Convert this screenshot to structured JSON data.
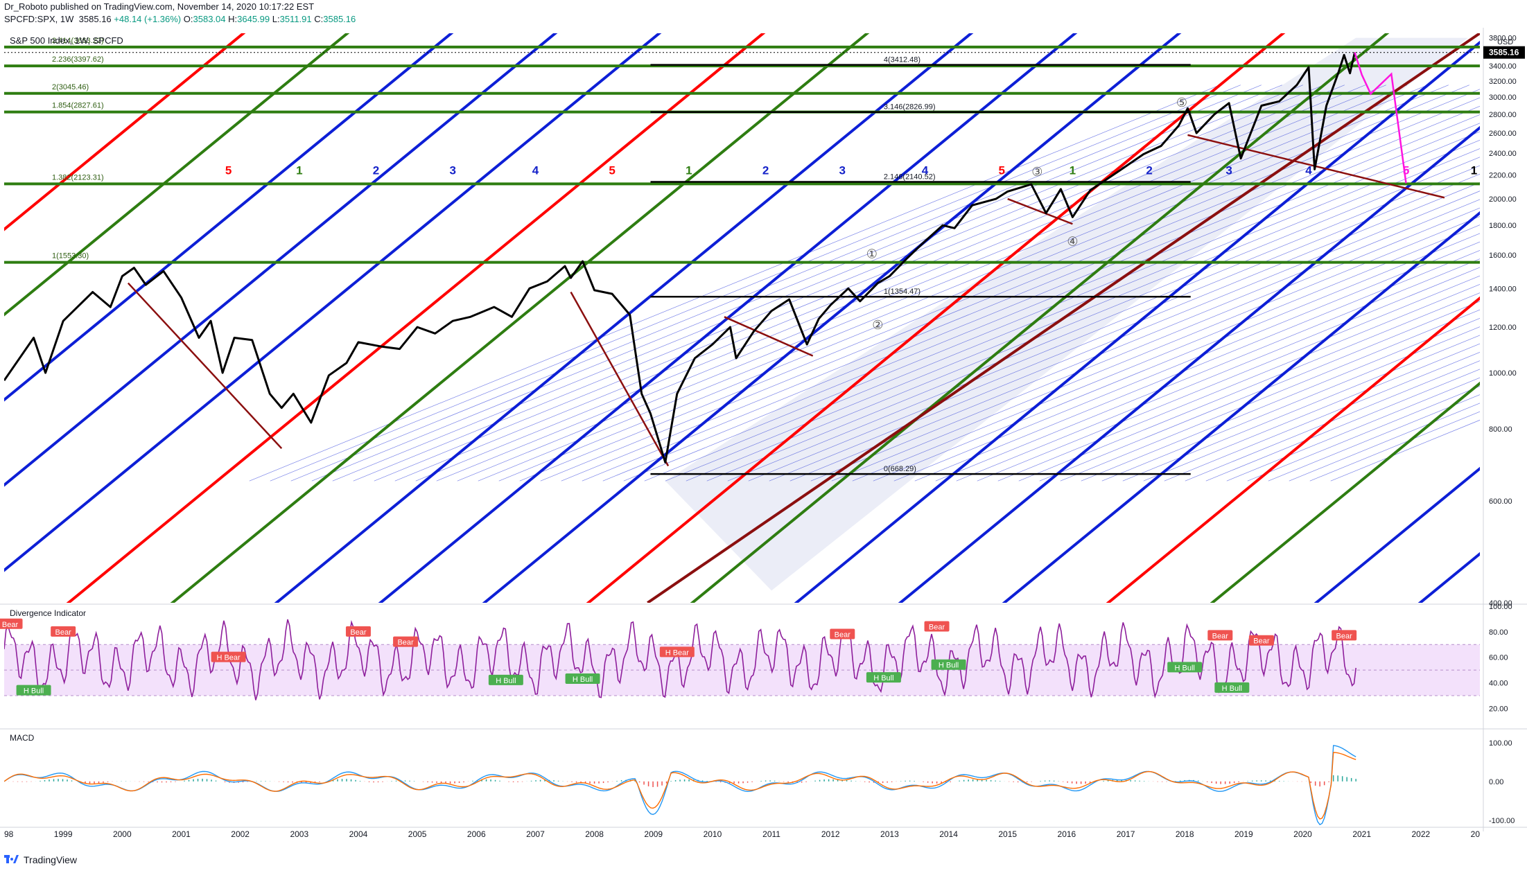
{
  "header": {
    "publisher_line": "Dr_Roboto published on TradingView.com, November 14, 2020 10:17:22 EST",
    "symbol": "SPCFD:SPX, 1W",
    "last": "3585.16",
    "change": "+48.14 (+1.36%)",
    "o_label": "O:",
    "o": "3583.04",
    "h_label": "H:",
    "h": "3645.99",
    "l_label": "L:",
    "l": "3511.91",
    "c_label": "C:",
    "c": "3585.16"
  },
  "footer": {
    "brand": "TradingView"
  },
  "colors": {
    "price": "#000000",
    "red": "#ff0000",
    "green": "#2e7d11",
    "blue": "#0d1fd6",
    "maroon": "#8b0f0f",
    "magenta": "#ff14e0",
    "rsi": "#8e1f9c",
    "rsi_band": "#f3e1fb",
    "macd": "#2196f3",
    "signal": "#ff6d00",
    "hist_pos": "#26a69a",
    "hist_neg": "#ef5350"
  },
  "chart_data": [
    {
      "type": "line",
      "title": "S&P 500 Index, 1W, SPCFD",
      "currency": "USD",
      "last_price_label": "3585.16",
      "x_ticks": [
        "98",
        "1999",
        "2000",
        "2001",
        "2002",
        "2003",
        "2004",
        "2005",
        "2006",
        "2007",
        "2008",
        "2009",
        "2010",
        "2011",
        "2012",
        "2013",
        "2014",
        "2015",
        "2016",
        "2017",
        "2018",
        "2019",
        "2020",
        "2021",
        "2022",
        "20"
      ],
      "y_ticks": [
        "3800.00",
        "3600.00",
        "3400.00",
        "3200.00",
        "3000.00",
        "2800.00",
        "2600.00",
        "2400.00",
        "2200.00",
        "2000.00",
        "1800.00",
        "1600.00",
        "1400.00",
        "1200.00",
        "1000.00",
        "800.00",
        "600.00",
        "400.00"
      ],
      "ylim": [
        400,
        3870
      ],
      "xlim": [
        1998.0,
        2023.0
      ],
      "series": [
        {
          "name": "",
          "points": [
            [
              1998.0,
              970
            ],
            [
              1998.5,
              1150
            ],
            [
              1998.7,
              1000
            ],
            [
              1999.0,
              1230
            ],
            [
              1999.5,
              1380
            ],
            [
              1999.8,
              1300
            ],
            [
              2000.0,
              1470
            ],
            [
              2000.2,
              1520
            ],
            [
              2000.4,
              1420
            ],
            [
              2000.7,
              1500
            ],
            [
              2001.0,
              1350
            ],
            [
              2001.3,
              1150
            ],
            [
              2001.5,
              1230
            ],
            [
              2001.7,
              1000
            ],
            [
              2001.9,
              1150
            ],
            [
              2002.2,
              1140
            ],
            [
              2002.5,
              920
            ],
            [
              2002.7,
              870
            ],
            [
              2002.9,
              920
            ],
            [
              2003.2,
              820
            ],
            [
              2003.5,
              990
            ],
            [
              2003.8,
              1040
            ],
            [
              2004.0,
              1130
            ],
            [
              2004.4,
              1110
            ],
            [
              2004.7,
              1100
            ],
            [
              2005.0,
              1200
            ],
            [
              2005.3,
              1170
            ],
            [
              2005.6,
              1230
            ],
            [
              2005.9,
              1250
            ],
            [
              2006.3,
              1300
            ],
            [
              2006.6,
              1250
            ],
            [
              2006.9,
              1400
            ],
            [
              2007.2,
              1440
            ],
            [
              2007.5,
              1530
            ],
            [
              2007.6,
              1460
            ],
            [
              2007.8,
              1560
            ],
            [
              2008.0,
              1390
            ],
            [
              2008.3,
              1370
            ],
            [
              2008.6,
              1260
            ],
            [
              2008.8,
              920
            ],
            [
              2008.95,
              850
            ],
            [
              2009.2,
              700
            ],
            [
              2009.4,
              920
            ],
            [
              2009.7,
              1060
            ],
            [
              2010.0,
              1120
            ],
            [
              2010.3,
              1200
            ],
            [
              2010.4,
              1060
            ],
            [
              2010.7,
              1180
            ],
            [
              2011.0,
              1280
            ],
            [
              2011.3,
              1340
            ],
            [
              2011.6,
              1120
            ],
            [
              2011.8,
              1240
            ],
            [
              2012.0,
              1310
            ],
            [
              2012.3,
              1400
            ],
            [
              2012.5,
              1330
            ],
            [
              2012.8,
              1430
            ],
            [
              2013.0,
              1470
            ],
            [
              2013.3,
              1580
            ],
            [
              2013.6,
              1690
            ],
            [
              2013.9,
              1800
            ],
            [
              2014.1,
              1780
            ],
            [
              2014.4,
              1950
            ],
            [
              2014.8,
              2000
            ],
            [
              2015.0,
              2060
            ],
            [
              2015.4,
              2120
            ],
            [
              2015.65,
              1890
            ],
            [
              2015.9,
              2080
            ],
            [
              2016.1,
              1860
            ],
            [
              2016.4,
              2070
            ],
            [
              2016.7,
              2170
            ],
            [
              2016.9,
              2240
            ],
            [
              2017.3,
              2390
            ],
            [
              2017.6,
              2470
            ],
            [
              2017.9,
              2680
            ],
            [
              2018.05,
              2870
            ],
            [
              2018.2,
              2600
            ],
            [
              2018.5,
              2800
            ],
            [
              2018.75,
              2930
            ],
            [
              2018.95,
              2350
            ],
            [
              2019.3,
              2900
            ],
            [
              2019.6,
              2950
            ],
            [
              2019.9,
              3150
            ],
            [
              2020.1,
              3380
            ],
            [
              2020.2,
              2250
            ],
            [
              2020.4,
              2900
            ],
            [
              2020.6,
              3300
            ],
            [
              2020.7,
              3550
            ],
            [
              2020.8,
              3300
            ],
            [
              2020.88,
              3585.16
            ]
          ]
        },
        {
          "name": "",
          "points": [
            [
              2020.88,
              3585.16
            ],
            [
              2021.0,
              3280
            ],
            [
              2021.15,
              3040
            ],
            [
              2021.5,
              3290
            ],
            [
              2021.75,
              2130
            ]
          ]
        }
      ],
      "fib_levels": [
        {
          "label": "2.414(3663.22)",
          "value": 3663.22
        },
        {
          "label": "2.236(3397.62)",
          "value": 3397.62
        },
        {
          "label": "2(3045.46)",
          "value": 3045.46
        },
        {
          "label": "1.854(2827.61)",
          "value": 2827.61
        },
        {
          "label": "1.382(2123.31)",
          "value": 2123.31
        },
        {
          "label": "1(1553.30)",
          "value": 1553.3
        }
      ],
      "fib_levels_2": [
        {
          "label": "4(3412.48)",
          "value": 3412.48
        },
        {
          "label": "3.146(2826.99)",
          "value": 2826.99
        },
        {
          "label": "2.146(2140.52)",
          "value": 2140.52
        },
        {
          "label": "1(1354.47)",
          "value": 1354.47
        },
        {
          "label": "0(668.29)",
          "value": 668.29
        }
      ],
      "cycle_labels": [
        {
          "text": "5",
          "color": "red",
          "x": 2001.8
        },
        {
          "text": "1",
          "color": "green",
          "x": 2003.0
        },
        {
          "text": "2",
          "color": "blue",
          "x": 2004.3
        },
        {
          "text": "3",
          "color": "blue",
          "x": 2005.6
        },
        {
          "text": "4",
          "color": "blue",
          "x": 2007.0
        },
        {
          "text": "5",
          "color": "red",
          "x": 2008.3
        },
        {
          "text": "1",
          "color": "green",
          "x": 2009.6
        },
        {
          "text": "2",
          "color": "blue",
          "x": 2010.9
        },
        {
          "text": "3",
          "color": "blue",
          "x": 2012.2
        },
        {
          "text": "4",
          "color": "blue",
          "x": 2013.6
        },
        {
          "text": "5",
          "color": "red",
          "x": 2014.9
        },
        {
          "text": "1",
          "color": "green",
          "x": 2016.1
        },
        {
          "text": "2",
          "color": "blue",
          "x": 2017.4
        },
        {
          "text": "3",
          "color": "blue",
          "x": 2018.75
        },
        {
          "text": "4",
          "color": "blue",
          "x": 2020.1
        },
        {
          "text": "5",
          "color": "magenta",
          "x": 2021.75
        },
        {
          "text": "1",
          "color": "black",
          "x": 2022.9
        }
      ],
      "wave_labels": [
        {
          "text": "①",
          "x": 2012.7,
          "y": 1580
        },
        {
          "text": "②",
          "x": 2012.8,
          "y": 1190
        },
        {
          "text": "③",
          "x": 2015.5,
          "y": 2190
        },
        {
          "text": "④",
          "x": 2016.1,
          "y": 1660
        },
        {
          "text": "⑤",
          "x": 2017.95,
          "y": 2890
        }
      ]
    },
    {
      "type": "line",
      "title": "Divergence Indicator",
      "y_ticks": [
        "100.00",
        "80.00",
        "60.00",
        "40.00",
        "20.00"
      ],
      "ylim": [
        5,
        100
      ],
      "band": [
        30,
        70
      ],
      "tags": [
        {
          "text": "Bear",
          "kind": "bear",
          "x": 1998.1,
          "y": 86
        },
        {
          "text": "Bear",
          "kind": "bear",
          "x": 1999.0,
          "y": 80
        },
        {
          "text": "H Bull",
          "kind": "bull",
          "x": 1998.5,
          "y": 34
        },
        {
          "text": "H Bear",
          "kind": "bear",
          "x": 2001.8,
          "y": 60
        },
        {
          "text": "Bear",
          "kind": "bear",
          "x": 2004.0,
          "y": 80
        },
        {
          "text": "Bear",
          "kind": "bear",
          "x": 2004.8,
          "y": 72
        },
        {
          "text": "H Bull",
          "kind": "bull",
          "x": 2006.5,
          "y": 42
        },
        {
          "text": "H Bull",
          "kind": "bull",
          "x": 2007.8,
          "y": 43
        },
        {
          "text": "H Bear",
          "kind": "bear",
          "x": 2009.4,
          "y": 64
        },
        {
          "text": "Bear",
          "kind": "bear",
          "x": 2012.2,
          "y": 78
        },
        {
          "text": "H Bull",
          "kind": "bull",
          "x": 2012.9,
          "y": 44
        },
        {
          "text": "Bear",
          "kind": "bear",
          "x": 2013.8,
          "y": 84
        },
        {
          "text": "H Bull",
          "kind": "bull",
          "x": 2014.0,
          "y": 54
        },
        {
          "text": "H Bull",
          "kind": "bull",
          "x": 2018.0,
          "y": 52
        },
        {
          "text": "Bear",
          "kind": "bear",
          "x": 2018.6,
          "y": 77
        },
        {
          "text": "Bear",
          "kind": "bear",
          "x": 2019.3,
          "y": 73
        },
        {
          "text": "H Bull",
          "kind": "bull",
          "x": 2018.8,
          "y": 36
        },
        {
          "text": "Bear",
          "kind": "bear",
          "x": 2020.7,
          "y": 77
        }
      ]
    },
    {
      "type": "line",
      "title": "MACD",
      "y_ticks": [
        "100.00",
        "0.00",
        "-100.00"
      ],
      "ylim": [
        -120,
        130
      ]
    }
  ]
}
